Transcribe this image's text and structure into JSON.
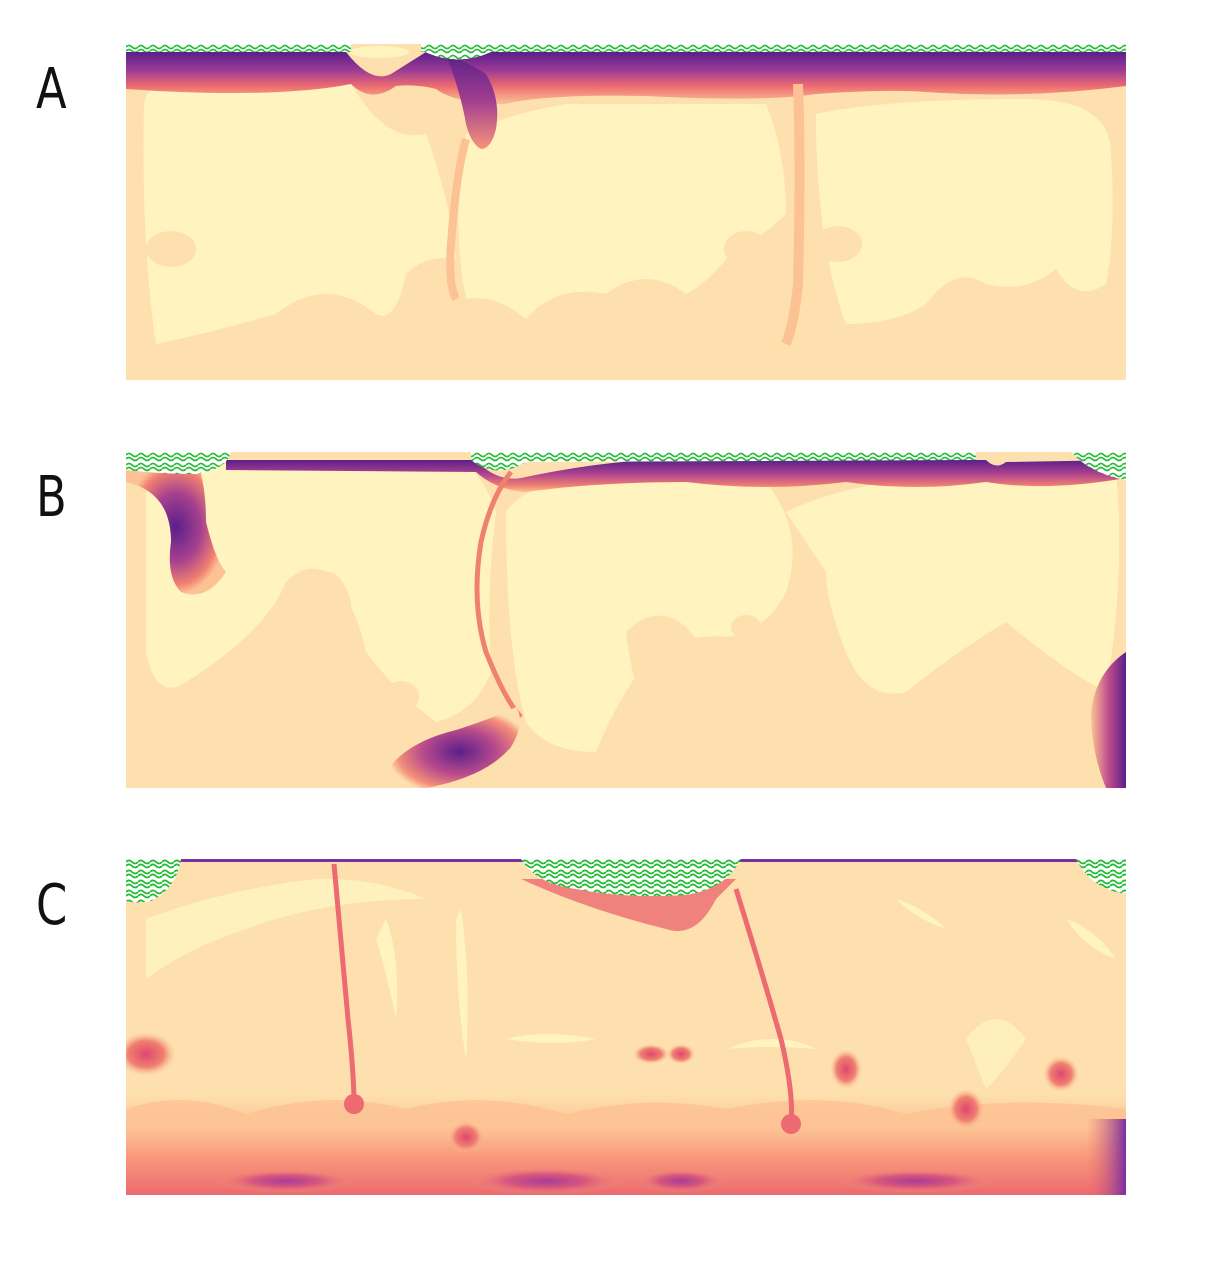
{
  "panels": [
    {
      "label": "A"
    },
    {
      "label": "B"
    },
    {
      "label": "C"
    }
  ],
  "colors": {
    "background": "#ffffff",
    "pale_yellow": "#fff3bf",
    "light_peach": "#fde0ae",
    "peach": "#fcc294",
    "salmon": "#f8957a",
    "coral": "#ec6a70",
    "magenta": "#c94c8c",
    "purple": "#7a2ea0",
    "dark_purple": "#5a1f8a",
    "green": "#22bb33"
  }
}
